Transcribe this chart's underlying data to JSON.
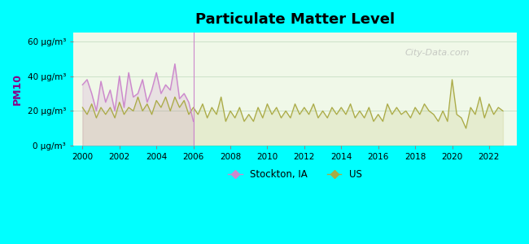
{
  "title": "Particulate Matter Level",
  "ylabel": "PM10",
  "bg_outer": "#00FFFF",
  "bg_plot": "#f0f8e8",
  "bg_plot_top": "#e8f8f0",
  "ylim": [
    0,
    65
  ],
  "yticks": [
    0,
    20,
    40,
    60
  ],
  "ytick_labels": [
    "0 μg/m³",
    "20 μg/m³",
    "40 μg/m³",
    "60 μg/m³"
  ],
  "xlim": [
    1999.5,
    2023.5
  ],
  "xticks": [
    2000,
    2002,
    2004,
    2006,
    2008,
    2010,
    2012,
    2014,
    2016,
    2018,
    2020,
    2022
  ],
  "stockton_color": "#cc88cc",
  "us_color": "#aaaa44",
  "legend_stockton": "Stockton, IA",
  "legend_us": "US",
  "watermark": "City-Data.com",
  "stockton_x": [
    2000.0,
    2000.25,
    2000.5,
    2000.75,
    2001.0,
    2001.25,
    2001.5,
    2001.75,
    2002.0,
    2002.25,
    2002.5,
    2002.75,
    2003.0,
    2003.25,
    2003.5,
    2003.75,
    2004.0,
    2004.25,
    2004.5,
    2004.75,
    2005.0,
    2005.25,
    2005.5,
    2005.75,
    2006.0
  ],
  "stockton_y": [
    35,
    38,
    30,
    20,
    37,
    25,
    32,
    20,
    40,
    22,
    42,
    28,
    30,
    38,
    25,
    32,
    42,
    30,
    35,
    32,
    47,
    27,
    30,
    25,
    14
  ],
  "us_x": [
    2000.0,
    2000.25,
    2000.5,
    2000.75,
    2001.0,
    2001.25,
    2001.5,
    2001.75,
    2002.0,
    2002.25,
    2002.5,
    2002.75,
    2003.0,
    2003.25,
    2003.5,
    2003.75,
    2004.0,
    2004.25,
    2004.5,
    2004.75,
    2005.0,
    2005.25,
    2005.5,
    2005.75,
    2006.0,
    2006.25,
    2006.5,
    2006.75,
    2007.0,
    2007.25,
    2007.5,
    2007.75,
    2008.0,
    2008.25,
    2008.5,
    2008.75,
    2009.0,
    2009.25,
    2009.5,
    2009.75,
    2010.0,
    2010.25,
    2010.5,
    2010.75,
    2011.0,
    2011.25,
    2011.5,
    2011.75,
    2012.0,
    2012.25,
    2012.5,
    2012.75,
    2013.0,
    2013.25,
    2013.5,
    2013.75,
    2014.0,
    2014.25,
    2014.5,
    2014.75,
    2015.0,
    2015.25,
    2015.5,
    2015.75,
    2016.0,
    2016.25,
    2016.5,
    2016.75,
    2017.0,
    2017.25,
    2017.5,
    2017.75,
    2018.0,
    2018.25,
    2018.5,
    2018.75,
    2019.0,
    2019.25,
    2019.5,
    2019.75,
    2020.0,
    2020.25,
    2020.5,
    2020.75,
    2021.0,
    2021.25,
    2021.5,
    2021.75,
    2022.0,
    2022.25,
    2022.5,
    2022.75
  ],
  "us_y": [
    22,
    18,
    24,
    16,
    22,
    18,
    22,
    16,
    25,
    18,
    22,
    20,
    28,
    20,
    24,
    18,
    26,
    22,
    28,
    20,
    28,
    22,
    26,
    18,
    22,
    18,
    24,
    16,
    22,
    18,
    28,
    14,
    20,
    16,
    22,
    14,
    18,
    14,
    22,
    16,
    24,
    18,
    22,
    16,
    20,
    16,
    24,
    18,
    22,
    18,
    24,
    16,
    20,
    16,
    22,
    18,
    22,
    18,
    24,
    16,
    20,
    16,
    22,
    14,
    18,
    14,
    24,
    18,
    22,
    18,
    20,
    16,
    22,
    18,
    24,
    20,
    18,
    14,
    20,
    14,
    38,
    18,
    16,
    10,
    22,
    18,
    28,
    16,
    24,
    18,
    22,
    20
  ]
}
